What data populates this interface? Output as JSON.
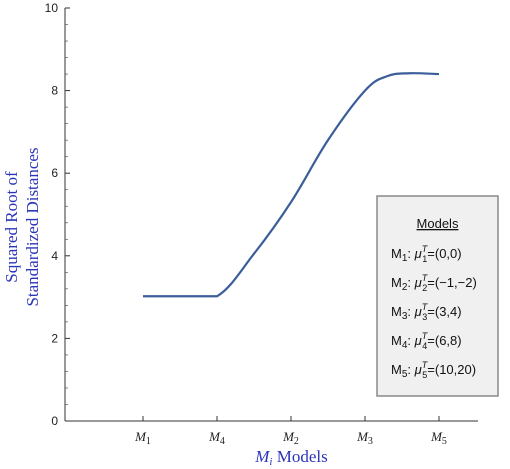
{
  "chart_data": {
    "type": "line",
    "title": "",
    "xlabel_main": "M",
    "xlabel_sub": "i",
    "xlabel_rest": " Models",
    "ylabel_line1": "Squared Root of",
    "ylabel_line2": "Standardized Distances",
    "ylim": [
      0,
      10
    ],
    "yticks": [
      "0",
      "2",
      "4",
      "6",
      "8",
      "10"
    ],
    "categories": [
      {
        "main": "M",
        "sub": "1"
      },
      {
        "main": "M",
        "sub": "4"
      },
      {
        "main": "M",
        "sub": "2"
      },
      {
        "main": "M",
        "sub": "3"
      },
      {
        "main": "M",
        "sub": "5"
      }
    ],
    "series": [
      {
        "color": "#3b5e9a",
        "x": [
          0,
          0.5,
          1,
          1.5,
          2,
          2.5,
          3,
          3.3,
          3.6,
          4
        ],
        "y": [
          3.02,
          3.02,
          3.02,
          4.05,
          5.3,
          6.8,
          8.0,
          8.35,
          8.42,
          8.4
        ]
      }
    ],
    "legend": {
      "title": "Models",
      "placement": "right",
      "entries": [
        {
          "m": "M",
          "msub": "1",
          "mu": "μ",
          "musub": "1",
          "musup": "T",
          "value": "=(0,0)"
        },
        {
          "m": "M",
          "msub": "2",
          "mu": "μ",
          "musub": "2",
          "musup": "T",
          "value": "=(−1,−2)"
        },
        {
          "m": "M",
          "msub": "3",
          "mu": "μ",
          "musub": "3",
          "musup": "T",
          "value": "=(3,4)"
        },
        {
          "m": "M",
          "msub": "4",
          "mu": "μ",
          "musub": "4",
          "musup": "T",
          "value": "=(6,8)"
        },
        {
          "m": "M",
          "msub": "5",
          "mu": "μ",
          "musub": "5",
          "musup": "T",
          "value": "=(10,20)"
        }
      ]
    }
  }
}
